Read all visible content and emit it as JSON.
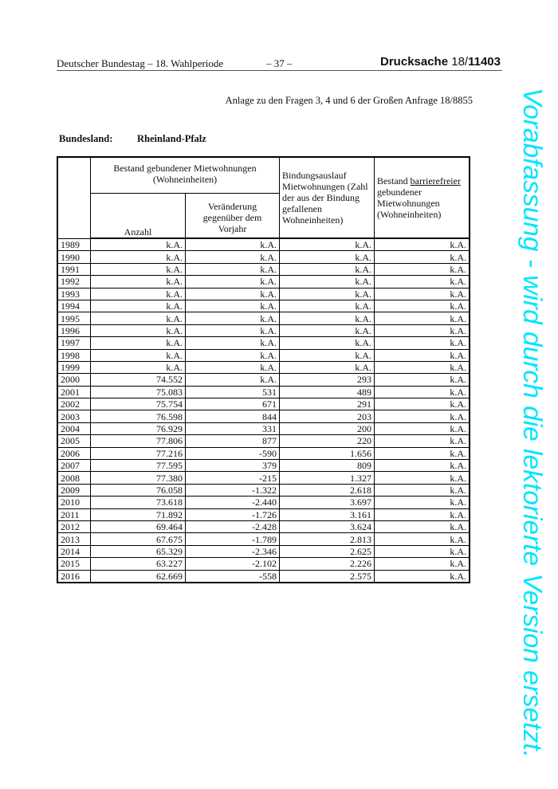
{
  "header": {
    "left": "Deutscher Bundestag – 18. Wahlperiode",
    "page": "– 37 –",
    "drucksache_label": "Drucksache",
    "drucksache_prefix": "18/",
    "drucksache_number": "11403"
  },
  "anlage": "Anlage zu den Fragen 3, 4 und 6 der Großen Anfrage 18/8855",
  "bundesland": {
    "label": "Bundesland:",
    "value": "Rheinland-Pfalz"
  },
  "table": {
    "group_header": "Bestand gebundener Mietwohnungen (Wohneinheiten)",
    "col_anzahl": "Anzahl",
    "col_veraenderung": "Veränderung gegenüber dem Vorjahr",
    "col_bindungsauslauf": "Bindungsauslauf Mietwohnungen (Zahl der aus der Bindung gefallenen Wohneinheiten)",
    "col_barriere_pre": "Bestand",
    "col_barriere_u": "barrierefreier",
    "col_barriere_post": "gebundener Mietwohnungen (Wohneinheiten)",
    "rows": [
      [
        "1989",
        "k.A.",
        "k.A.",
        "k.A.",
        "k.A."
      ],
      [
        "1990",
        "k.A.",
        "k.A.",
        "k.A.",
        "k.A."
      ],
      [
        "1991",
        "k.A.",
        "k.A.",
        "k.A.",
        "k.A."
      ],
      [
        "1992",
        "k.A.",
        "k.A.",
        "k.A.",
        "k.A."
      ],
      [
        "1993",
        "k.A.",
        "k.A.",
        "k.A.",
        "k.A."
      ],
      [
        "1994",
        "k.A.",
        "k.A.",
        "k.A.",
        "k.A."
      ],
      [
        "1995",
        "k.A.",
        "k.A.",
        "k.A.",
        "k.A."
      ],
      [
        "1996",
        "k.A.",
        "k.A.",
        "k.A.",
        "k.A."
      ],
      [
        "1997",
        "k.A.",
        "k.A.",
        "k.A.",
        "k.A."
      ],
      [
        "1998",
        "k.A.",
        "k.A.",
        "k.A.",
        "k.A."
      ],
      [
        "1999",
        "k.A.",
        "k.A.",
        "k.A.",
        "k.A."
      ],
      [
        "2000",
        "74.552",
        "k.A.",
        "293",
        "k.A."
      ],
      [
        "2001",
        "75.083",
        "531",
        "489",
        "k.A."
      ],
      [
        "2002",
        "75.754",
        "671",
        "291",
        "k.A."
      ],
      [
        "2003",
        "76.598",
        "844",
        "203",
        "k.A."
      ],
      [
        "2004",
        "76.929",
        "331",
        "200",
        "k.A."
      ],
      [
        "2005",
        "77.806",
        "877",
        "220",
        "k.A."
      ],
      [
        "2006",
        "77.216",
        "-590",
        "1.656",
        "k.A."
      ],
      [
        "2007",
        "77.595",
        "379",
        "809",
        "k.A."
      ],
      [
        "2008",
        "77.380",
        "-215",
        "1.327",
        "k.A."
      ],
      [
        "2009",
        "76.058",
        "-1.322",
        "2.618",
        "k.A."
      ],
      [
        "2010",
        "73.618",
        "-2.440",
        "3.697",
        "k.A."
      ],
      [
        "2011",
        "71.892",
        "-1.726",
        "3.161",
        "k.A."
      ],
      [
        "2012",
        "69.464",
        "-2.428",
        "3.624",
        "k.A."
      ],
      [
        "2013",
        "67.675",
        "-1.789",
        "2.813",
        "k.A."
      ],
      [
        "2014",
        "65.329",
        "-2.346",
        "2.625",
        "k.A."
      ],
      [
        "2015",
        "63.227",
        "-2.102",
        "2.226",
        "k.A."
      ],
      [
        "2016",
        "62.669",
        "-558",
        "2.575",
        "k.A."
      ]
    ]
  },
  "watermark": "Vorabfassung - wird durch die lektorierte Version ersetzt.",
  "colors": {
    "watermark": "#00e5ff"
  }
}
